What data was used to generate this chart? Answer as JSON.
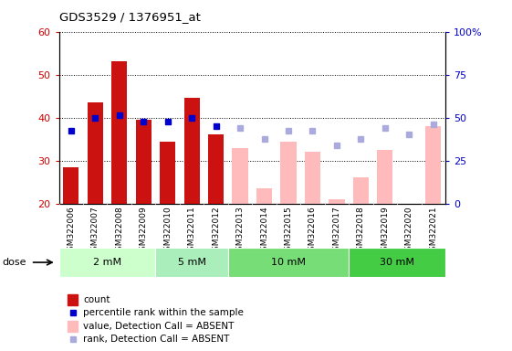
{
  "title": "GDS3529 / 1376951_at",
  "samples": [
    "GSM322006",
    "GSM322007",
    "GSM322008",
    "GSM322009",
    "GSM322010",
    "GSM322011",
    "GSM322012",
    "GSM322013",
    "GSM322014",
    "GSM322015",
    "GSM322016",
    "GSM322017",
    "GSM322018",
    "GSM322019",
    "GSM322020",
    "GSM322021"
  ],
  "count_values": [
    28.5,
    43.5,
    53.0,
    39.5,
    34.5,
    44.5,
    36.0,
    null,
    null,
    null,
    null,
    null,
    null,
    null,
    null,
    null
  ],
  "count_absent_values": [
    null,
    null,
    null,
    null,
    null,
    null,
    null,
    33.0,
    23.5,
    34.5,
    32.0,
    21.0,
    26.0,
    32.5,
    null,
    38.0
  ],
  "rank_present": [
    37.0,
    40.0,
    40.5,
    39.0,
    39.0,
    40.0,
    38.0,
    null,
    null,
    null,
    null,
    null,
    null,
    null,
    null,
    null
  ],
  "rank_absent": [
    null,
    null,
    null,
    null,
    null,
    null,
    null,
    37.5,
    35.0,
    37.0,
    37.0,
    33.5,
    35.0,
    37.5,
    36.0,
    38.5
  ],
  "dose_labels": [
    "2 mM",
    "5 mM",
    "10 mM",
    "30 mM"
  ],
  "dose_ranges": [
    [
      0,
      4
    ],
    [
      4,
      7
    ],
    [
      7,
      12
    ],
    [
      12,
      16
    ]
  ],
  "dose_colors": [
    "#ccffcc",
    "#aaeebb",
    "#77dd77",
    "#44cc44"
  ],
  "ylim_left": [
    20,
    60
  ],
  "ylim_right": [
    0,
    100
  ],
  "yticks_left": [
    20,
    30,
    40,
    50,
    60
  ],
  "yticks_right": [
    0,
    25,
    50,
    75,
    100
  ],
  "yticklabels_right": [
    "0",
    "25",
    "50",
    "75",
    "100%"
  ],
  "bar_color_present": "#cc1111",
  "bar_color_absent": "#ffbbbb",
  "dot_color_present": "#0000cc",
  "dot_color_absent": "#aaaadd",
  "plot_bg_color": "#ffffff",
  "tick_bg_color": "#e0e0e0",
  "xlabel_color": "#cc0000",
  "ylabel_right_color": "#0000cc"
}
